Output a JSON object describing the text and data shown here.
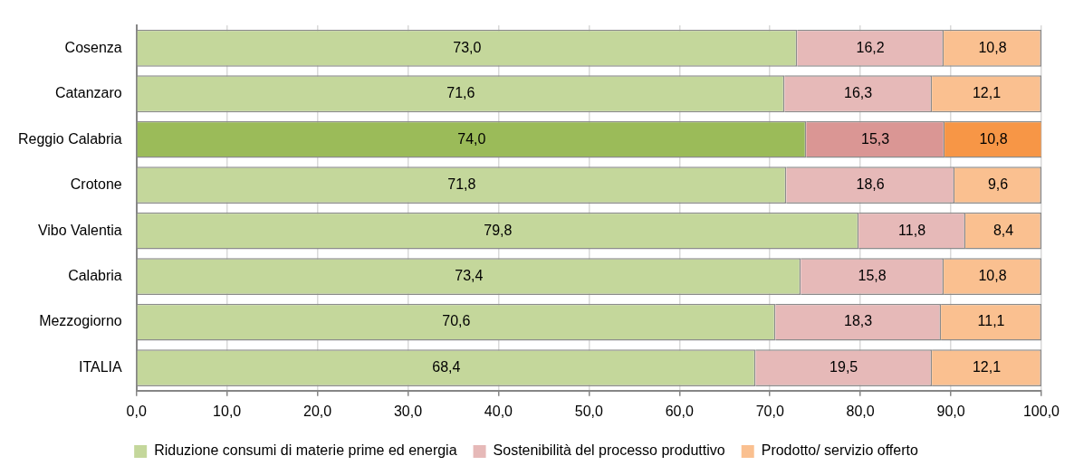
{
  "chart_data": {
    "type": "bar",
    "orientation": "horizontal",
    "stacked": true,
    "categories": [
      "Cosenza",
      "Catanzaro",
      "Reggio Calabria",
      "Crotone",
      "Vibo Valentia",
      "Calabria",
      "Mezzogiorno",
      "ITALIA"
    ],
    "series": [
      {
        "name": "Riduzione consumi di materie prime ed energia",
        "color": "#c4d79b",
        "colors": [
          "#c4d79b",
          "#c4d79b",
          "#9bbb59",
          "#c4d79b",
          "#c4d79b",
          "#c4d79b",
          "#c4d79b",
          "#c4d79b"
        ],
        "values": [
          73.0,
          71.6,
          74.0,
          71.8,
          79.8,
          73.4,
          70.6,
          68.4
        ],
        "value_labels": [
          "73,0",
          "71,6",
          "74,0",
          "71,8",
          "79,8",
          "73,4",
          "70,6",
          "68,4"
        ]
      },
      {
        "name": "Sostenibilità del processo produttivo",
        "color": "#e6b9b8",
        "colors": [
          "#e6b9b8",
          "#e6b9b8",
          "#da9694",
          "#e6b9b8",
          "#e6b9b8",
          "#e6b9b8",
          "#e6b9b8",
          "#e6b9b8"
        ],
        "values": [
          16.2,
          16.3,
          15.3,
          18.6,
          11.8,
          15.8,
          18.3,
          19.5
        ],
        "value_labels": [
          "16,2",
          "16,3",
          "15,3",
          "18,6",
          "11,8",
          "15,8",
          "18,3",
          "19,5"
        ]
      },
      {
        "name": "Prodotto/ servizio offerto",
        "color": "#fac090",
        "colors": [
          "#fac090",
          "#fac090",
          "#f79646",
          "#fac090",
          "#fac090",
          "#fac090",
          "#fac090",
          "#fac090"
        ],
        "values": [
          10.8,
          12.1,
          10.8,
          9.6,
          8.4,
          10.8,
          11.1,
          12.1
        ],
        "value_labels": [
          "10,8",
          "12,1",
          "10,8",
          "9,6",
          "8,4",
          "10,8",
          "11,1",
          "12,1"
        ]
      }
    ],
    "xlim": [
      0,
      100
    ],
    "xticks": [
      {
        "value": 0,
        "label": "0,0"
      },
      {
        "value": 10,
        "label": "10,0"
      },
      {
        "value": 20,
        "label": "20,0"
      },
      {
        "value": 30,
        "label": "30,0"
      },
      {
        "value": 40,
        "label": "40,0"
      },
      {
        "value": 50,
        "label": "50,0"
      },
      {
        "value": 60,
        "label": "60,0"
      },
      {
        "value": 70,
        "label": "70,0"
      },
      {
        "value": 80,
        "label": "80,0"
      },
      {
        "value": 90,
        "label": "90,0"
      },
      {
        "value": 100,
        "label": "100,0"
      }
    ],
    "grid": "x",
    "legend": "bottom"
  }
}
